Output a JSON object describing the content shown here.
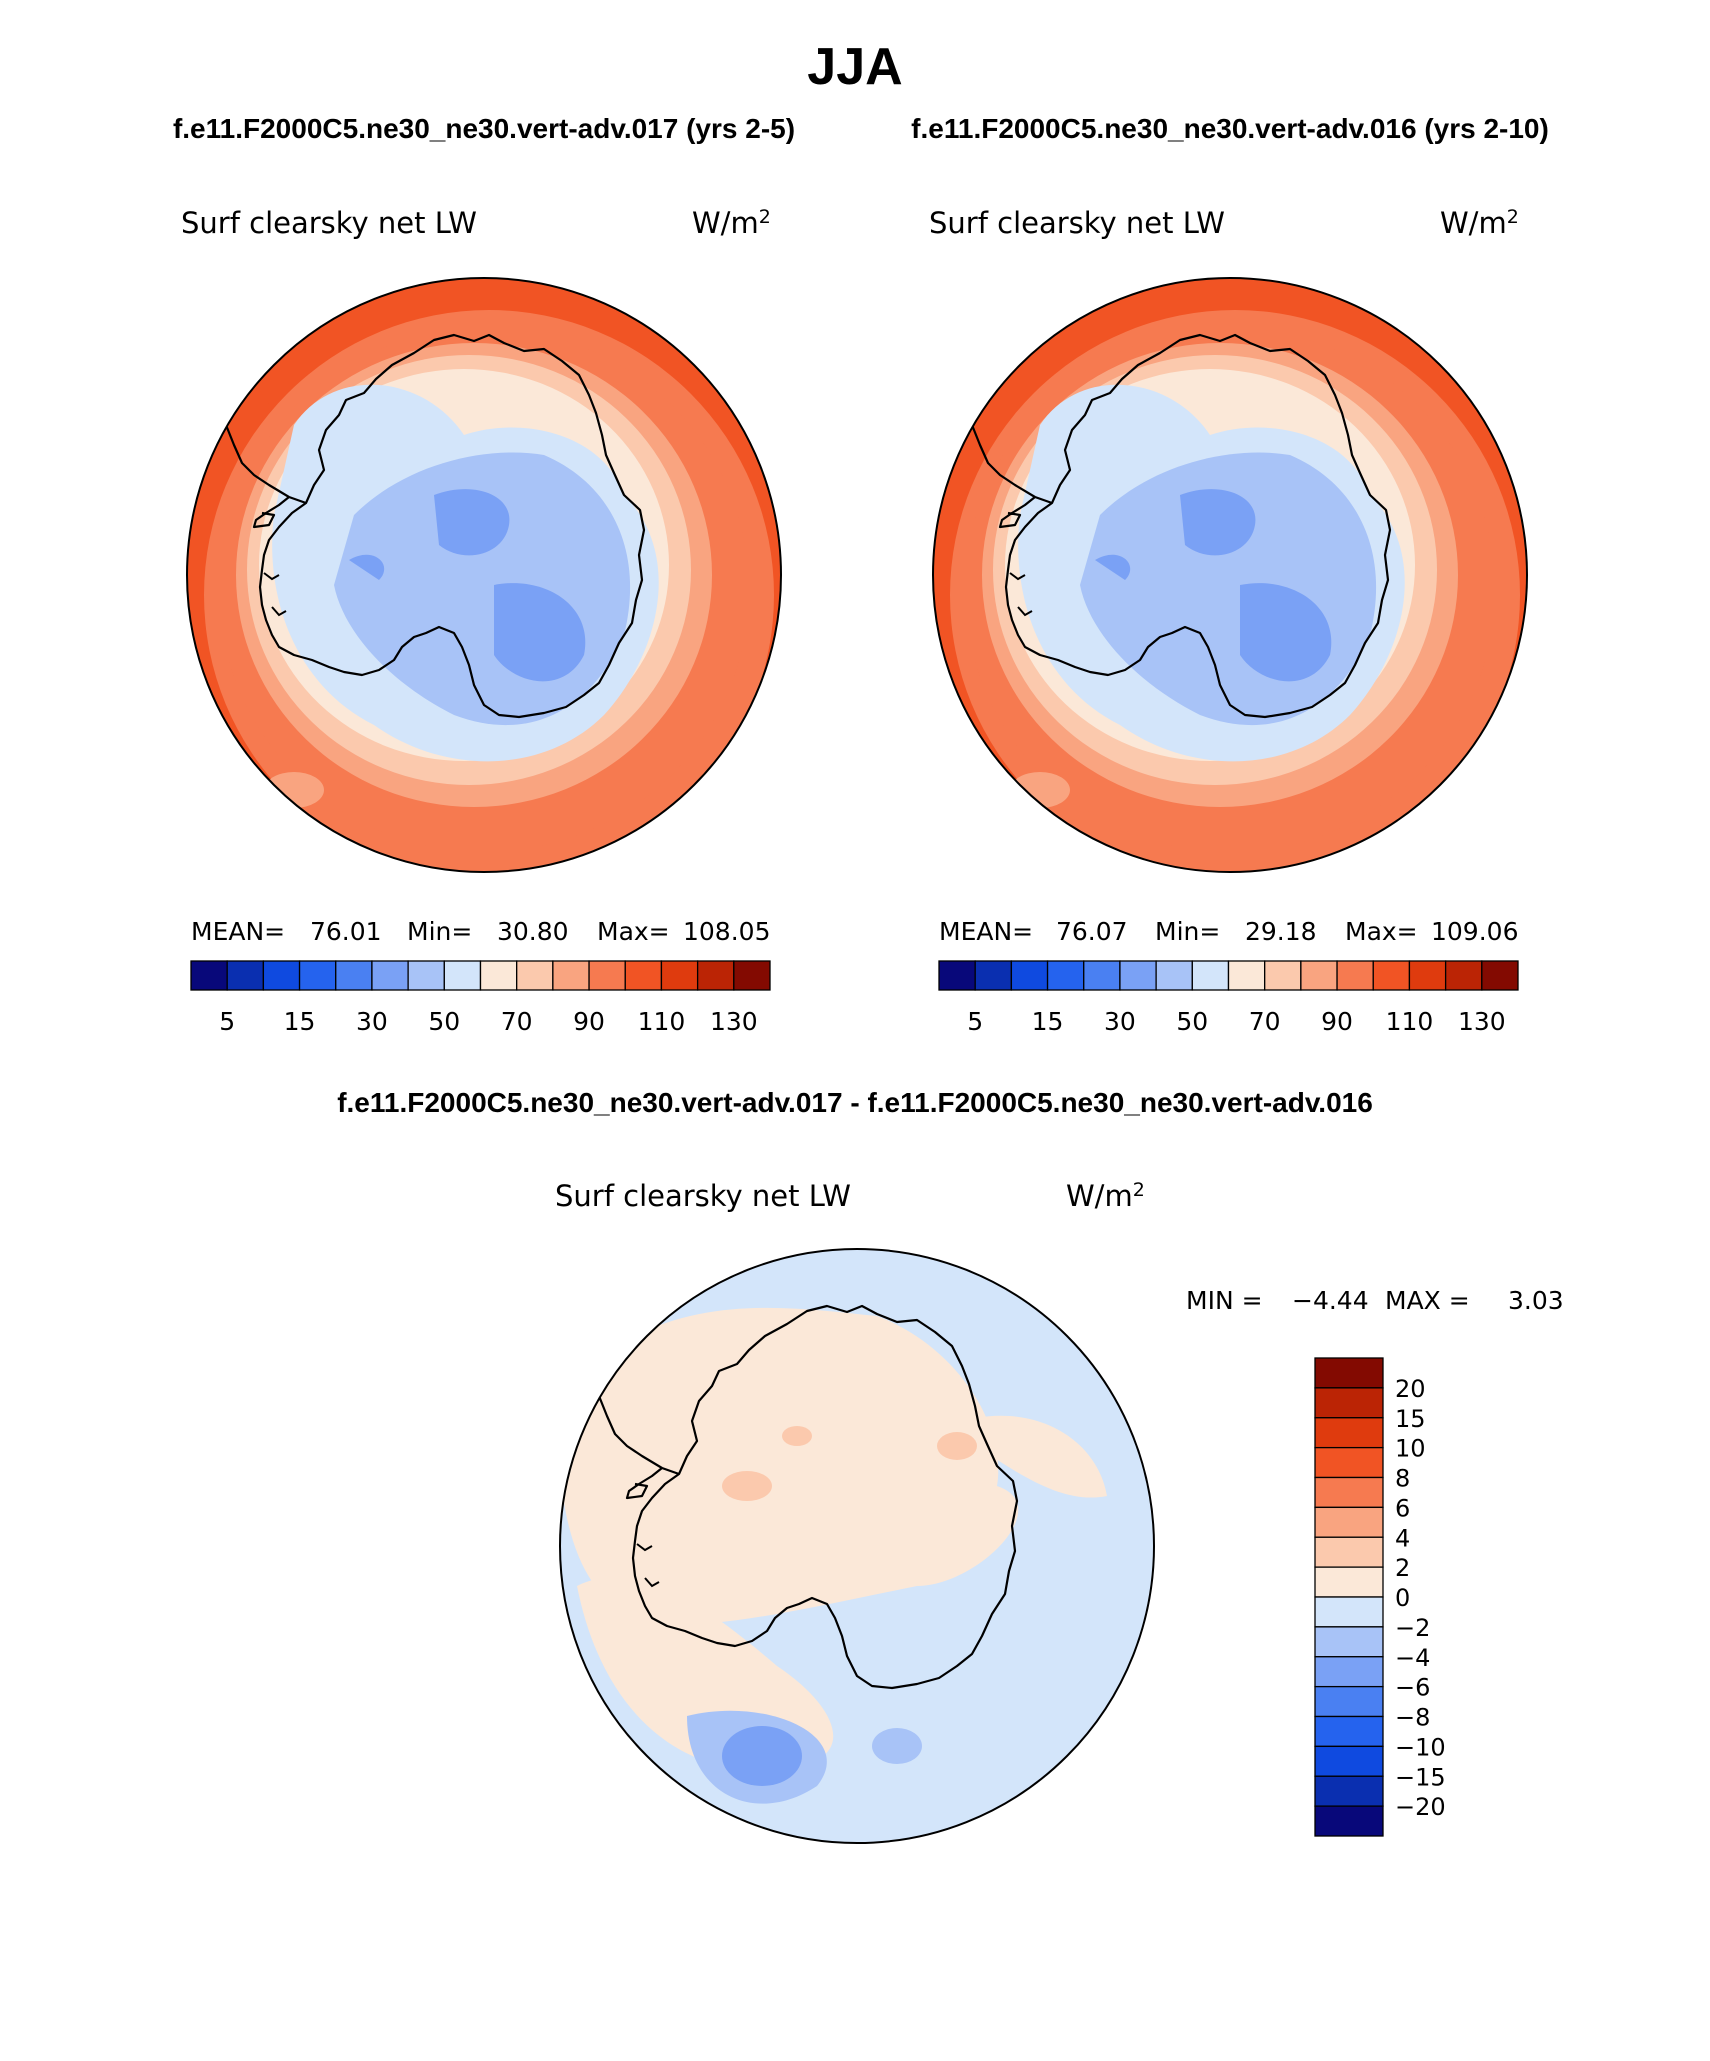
{
  "title": "JJA",
  "case_left": "f.e11.F2000C5.ne30_ne30.vert-adv.017 (yrs 2-5)",
  "case_right": "f.e11.F2000C5.ne30_ne30.vert-adv.016 (yrs 2-10)",
  "diff_title": "f.e11.F2000C5.ne30_ne30.vert-adv.017 - f.e11.F2000C5.ne30_ne30.vert-adv.016",
  "panels": {
    "left": {
      "variable": "Surf clearsky net LW",
      "units_base": "W/m",
      "units_exp": "2",
      "mean_label": "MEAN=",
      "mean": "76.01",
      "min_label": "Min=",
      "min": "30.80",
      "max_label": "Max=",
      "max": "108.05"
    },
    "right": {
      "variable": "Surf clearsky net LW",
      "units_base": "W/m",
      "units_exp": "2",
      "mean_label": "MEAN=",
      "mean": "76.07",
      "min_label": "Min=",
      "min": "29.18",
      "max_label": "Max=",
      "max": "109.06"
    },
    "diff": {
      "variable": "Surf clearsky net LW",
      "units_base": "W/m",
      "units_exp": "2",
      "min_label": "MIN =",
      "min": "−4.44",
      "max_label": "MAX =",
      "max": "3.03"
    }
  },
  "colorbar_abs": {
    "colors": [
      "#08087a",
      "#0a2fb0",
      "#0f4ae0",
      "#2563ee",
      "#4a80f2",
      "#7aa1f5",
      "#a8c3f7",
      "#d3e5fa",
      "#fbe8d8",
      "#fbc9ad",
      "#f9a480",
      "#f67a50",
      "#f15424",
      "#df3b0e",
      "#bb2405",
      "#830a01"
    ],
    "labels": [
      "5",
      "15",
      "30",
      "50",
      "70",
      "90",
      "110",
      "130"
    ]
  },
  "colorbar_diff": {
    "colors": [
      "#830a01",
      "#bb2405",
      "#df3b0e",
      "#f15424",
      "#f67a50",
      "#f9a480",
      "#fbc9ad",
      "#fbe8d8",
      "#d3e5fa",
      "#a8c3f7",
      "#7aa1f5",
      "#4a80f2",
      "#2563ee",
      "#0f4ae0",
      "#0a2fb0",
      "#08087a"
    ],
    "labels": [
      "20",
      "15",
      "10",
      "8",
      "6",
      "4",
      "2",
      "0",
      "−2",
      "−4",
      "−6",
      "−8",
      "−10",
      "−15",
      "−20"
    ]
  }
}
